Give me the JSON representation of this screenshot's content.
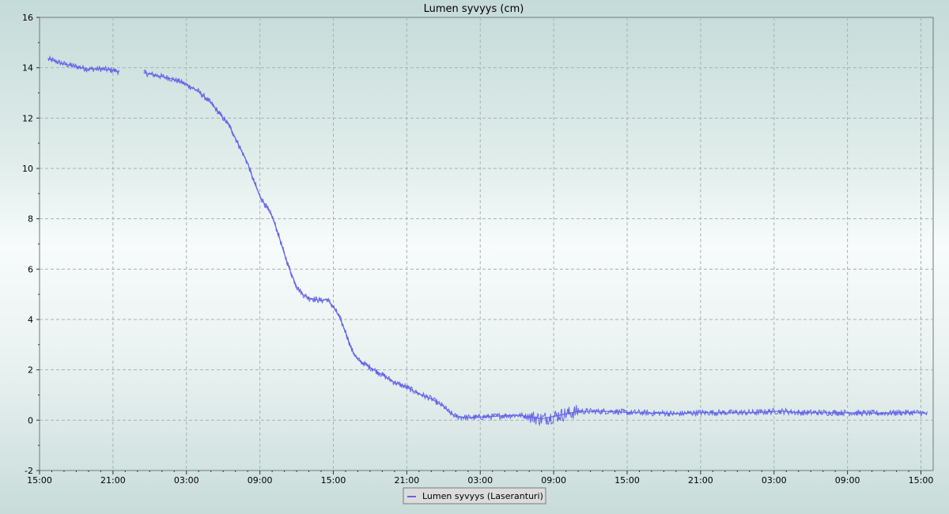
{
  "chart_data": {
    "type": "line",
    "title": "Lumen syvyys (cm)",
    "xlabel": "",
    "ylabel": "",
    "ylim": [
      -2,
      16
    ],
    "y_ticks": [
      -2,
      0,
      2,
      4,
      6,
      8,
      10,
      12,
      14,
      16
    ],
    "x_tick_labels": [
      "15:00",
      "21:00",
      "03:00",
      "09:00",
      "15:00",
      "21:00",
      "03:00",
      "09:00",
      "15:00",
      "21:00",
      "03:00",
      "09:00",
      "15:00"
    ],
    "x_range_hours": [
      0,
      73
    ],
    "x_unit": "hours",
    "grid": true,
    "legend_position": "bottom-center",
    "colors": {
      "series": "#6464e8",
      "grid": "#a6b2b4"
    },
    "series": [
      {
        "name": "Lumen syvyys (Laseranturi)",
        "segments": [
          [
            [
              0.7,
              14.35
            ],
            [
              2,
              14.15
            ],
            [
              3,
              14.05
            ],
            [
              4,
              13.95
            ],
            [
              5,
              13.95
            ],
            [
              6,
              13.9
            ],
            [
              6.5,
              13.85
            ]
          ],
          [
            [
              8.5,
              13.8
            ],
            [
              9.5,
              13.7
            ],
            [
              10.5,
              13.6
            ],
            [
              11.5,
              13.45
            ],
            [
              12.5,
              13.2
            ],
            [
              13,
              13.05
            ],
            [
              14,
              12.6
            ],
            [
              15,
              12.0
            ],
            [
              15.5,
              11.7
            ],
            [
              16,
              11.2
            ],
            [
              16.5,
              10.7
            ],
            [
              17,
              10.2
            ],
            [
              17.5,
              9.5
            ],
            [
              18,
              8.9
            ],
            [
              18.5,
              8.5
            ],
            [
              19,
              8.1
            ],
            [
              19.5,
              7.4
            ],
            [
              20,
              6.6
            ],
            [
              20.5,
              5.9
            ],
            [
              21,
              5.3
            ],
            [
              21.5,
              5.0
            ],
            [
              22,
              4.85
            ],
            [
              23,
              4.75
            ],
            [
              23.5,
              4.8
            ],
            [
              24,
              4.5
            ],
            [
              24.5,
              4.1
            ],
            [
              25,
              3.5
            ],
            [
              25.5,
              2.8
            ],
            [
              26,
              2.4
            ],
            [
              27,
              2.1
            ],
            [
              28,
              1.8
            ],
            [
              29,
              1.5
            ],
            [
              30,
              1.3
            ],
            [
              31,
              1.05
            ],
            [
              32,
              0.85
            ],
            [
              33,
              0.55
            ],
            [
              33.5,
              0.3
            ],
            [
              34,
              0.15
            ],
            [
              35,
              0.1
            ],
            [
              36,
              0.12
            ],
            [
              37,
              0.15
            ],
            [
              38,
              0.18
            ],
            [
              39,
              0.2
            ],
            [
              40,
              0.15
            ],
            [
              41,
              0.05
            ],
            [
              42,
              0.15
            ],
            [
              43,
              0.25
            ],
            [
              44,
              0.35
            ],
            [
              45,
              0.35
            ],
            [
              46,
              0.35
            ],
            [
              47,
              0.35
            ],
            [
              48,
              0.3
            ],
            [
              49,
              0.3
            ],
            [
              50,
              0.28
            ],
            [
              51,
              0.28
            ],
            [
              52,
              0.25
            ],
            [
              53,
              0.28
            ],
            [
              54,
              0.3
            ],
            [
              55,
              0.3
            ],
            [
              56,
              0.3
            ],
            [
              57,
              0.3
            ],
            [
              58,
              0.3
            ],
            [
              59,
              0.32
            ],
            [
              60,
              0.35
            ],
            [
              61,
              0.35
            ],
            [
              62,
              0.3
            ],
            [
              63,
              0.3
            ],
            [
              64,
              0.3
            ],
            [
              65,
              0.3
            ],
            [
              66,
              0.3
            ],
            [
              67,
              0.28
            ],
            [
              68,
              0.28
            ],
            [
              69,
              0.28
            ],
            [
              70,
              0.3
            ],
            [
              71,
              0.3
            ],
            [
              72,
              0.3
            ],
            [
              72.5,
              0.25
            ]
          ]
        ]
      }
    ]
  }
}
